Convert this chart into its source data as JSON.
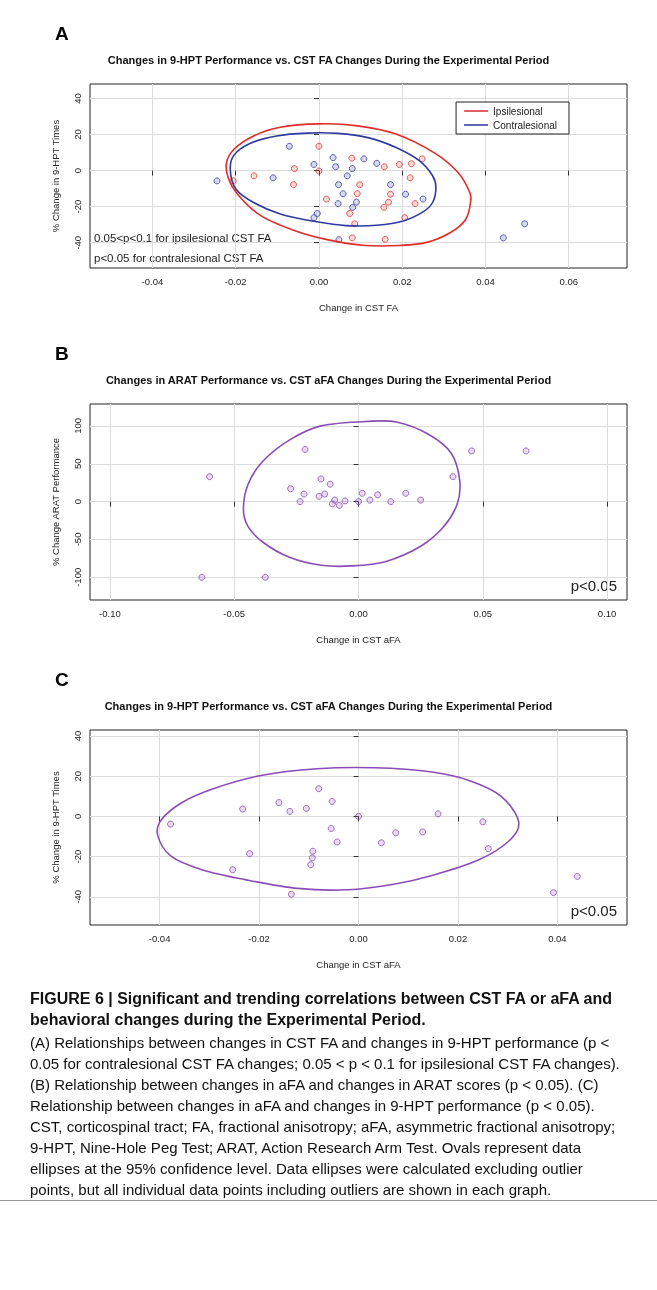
{
  "chart_data": [
    {
      "type": "scatter",
      "title": "Changes in 9-HPT Performance vs. CST FA Changes During the Experimental Period",
      "xlabel": "Change in CST FA",
      "ylabel": "% Change in 9-HPT Times",
      "xlim": [
        -0.055,
        0.074
      ],
      "ylim": [
        -54,
        48
      ],
      "xticks": [
        -0.04,
        -0.02,
        {
          "value": 0,
          "label": "0.00"
        },
        0.02,
        0.04,
        0.06
      ],
      "yticks": [
        -40,
        -20,
        0,
        20,
        40
      ],
      "grid": true,
      "legend": "top right",
      "marker": "circle",
      "annotations": [
        "A",
        "0.05<p<0.1 for ipsilesional CST FA",
        "p<0.05 for contralesional CST FA"
      ],
      "series": [
        {
          "type": "scatter",
          "name": "Ipsilesional",
          "color": "#d93a3a",
          "x": [
            0,
            0.0079,
            0.0157,
            0.0193,
            0.0222,
            0.0248,
            0,
            -0.0059,
            -0.0156,
            -0.0206,
            -0.0061,
            0.0098,
            0.0092,
            0.0018,
            0.0172,
            0.0167,
            0.0156,
            0.0231,
            0.0219,
            0.0074,
            0.0086,
            0.0206,
            0.008,
            0.0159
          ],
          "values": [
            13.5,
            6.9,
            2.1,
            3.4,
            3.8,
            6.5,
            -0.2,
            1.1,
            -2.9,
            -5.7,
            -7.8,
            -7.8,
            -12.8,
            -15.8,
            -13.1,
            -17.5,
            -20.4,
            -18.3,
            -4,
            -23.8,
            -29.5,
            -26.1,
            -37.3,
            -38.1
          ]
        },
        {
          "type": "scatter",
          "name": "Contralesional",
          "color": "#3b3f9e",
          "x": [
            -0.0071,
            -0.0012,
            0.0034,
            0.004,
            0.0108,
            0.0139,
            0.008,
            0.0068,
            -0.0245,
            -0.011,
            0.0047,
            0.0172,
            0.0058,
            0.0208,
            0.025,
            0.0046,
            0.009,
            0.0081,
            -0.0004,
            -0.0012,
            0.0048,
            0.0443,
            0.0494
          ],
          "values": [
            13.5,
            3.4,
            7.2,
            2.1,
            6.5,
            4,
            1.1,
            -2.9,
            -5.7,
            -4,
            -7.8,
            -7.8,
            -12.8,
            -13.1,
            -15.8,
            -18.3,
            -17.5,
            -20.4,
            -23.8,
            -26.1,
            -38.3,
            -37.3,
            -29.5
          ]
        }
      ]
    },
    {
      "type": "scatter",
      "title": "Changes in ARAT Performance vs. CST aFA Changes During the Experimental Period",
      "xlabel": "Change in CST aFA",
      "ylabel": "% Change ARAT Performance",
      "xlim": [
        -0.108,
        0.108
      ],
      "ylim": [
        -130,
        129
      ],
      "xticks": [
        {
          "value": -0.1,
          "label": "-0.10"
        },
        -0.05,
        {
          "value": 0,
          "label": "0.00"
        },
        0.05,
        {
          "value": 0.1,
          "label": "0.10"
        }
      ],
      "yticks": [
        -100,
        -50,
        0,
        50,
        100
      ],
      "grid": true,
      "marker": "circle",
      "annotations": [
        "B",
        "p<0.05"
      ],
      "series": [
        {
          "type": "scatter",
          "color": "#8a4db5",
          "x": [
            -0.0599,
            -0.063,
            -0.0375,
            -0.0215,
            0.0455,
            0.0674,
            0.038,
            -0.0151,
            -0.0114,
            -0.0273,
            -0.0219,
            -0.0136,
            -0.0159,
            -0.0235,
            -0.0096,
            -0.0105,
            -0.0077,
            -0.0054,
            0,
            0.0015,
            0.0046,
            0.0077,
            0.013,
            0.019,
            0.025
          ],
          "values": [
            33,
            -100,
            -100,
            69,
            67,
            67,
            33,
            30,
            23,
            17,
            10,
            10,
            7,
            0,
            2,
            -3,
            -5,
            1,
            0,
            11,
            2,
            9,
            0,
            11,
            2
          ]
        }
      ]
    },
    {
      "type": "scatter",
      "title": "Changes in 9-HPT Performance vs. CST aFA Changes During the Experimental Period",
      "xlabel": "Change in CST aFA",
      "ylabel": "% Change in 9-HPT Times",
      "xlim": [
        -0.054,
        0.054
      ],
      "ylim": [
        -54,
        43
      ],
      "xticks": [
        -0.04,
        -0.02,
        {
          "value": 0,
          "label": "0.00"
        },
        0.02,
        0.04
      ],
      "yticks": [
        -40,
        -20,
        0,
        20,
        40
      ],
      "grid": true,
      "marker": "circle",
      "annotations": [
        "C",
        "p<0.05"
      ],
      "series": [
        {
          "type": "scatter",
          "color": "#8a4db5",
          "x": [
            -0.0378,
            -0.0233,
            -0.0219,
            -0.0253,
            -0.016,
            -0.0138,
            -0.0105,
            -0.008,
            -0.0053,
            -0.0055,
            -0.0043,
            -0.0092,
            -0.0093,
            -0.0096,
            -0.0135,
            0,
            0.0046,
            0.0075,
            0.0129,
            0.016,
            0.025,
            0.0261,
            0.0392,
            0.044
          ],
          "values": [
            -3.8,
            3.7,
            -18.5,
            -26.5,
            6.9,
            2.5,
            4,
            13.8,
            7.5,
            -6,
            -12.7,
            -17.3,
            -20.6,
            -24,
            -38.7,
            0,
            -13.1,
            -8.1,
            -7.7,
            1.3,
            -2.7,
            -16,
            -37.9,
            -29.8
          ]
        }
      ]
    },
    {
      "type": "other",
      "title": "FIGURE 6 | Significant and trending correlations between CST FA or aFA and behavioral changes during the Experimental Period.",
      "annotations": [
        "(A) Relationships between changes in CST FA and changes in 9-HPT performance (p < 0.05 for contralesional CST FA changes; 0.05 < p < 0.1 for ipsilesional CST FA changes). (B) Relationship between changes in aFA and changes in ARAT scores (p < 0.05). (C) Relationship between changes in aFA and changes in 9-HPT performance (p < 0.05). CST, corticospinal tract; FA, fractional anisotropy; aFA, asymmetric fractional anisotropy; 9-HPT, Nine-Hole Peg Test; ARAT, Action Research Arm Test. Ovals represent data ellipses at the 95% confidence level. Data ellipses were calculated excluding outlier points, but all individual data points including outliers are shown in each graph."
      ]
    }
  ]
}
